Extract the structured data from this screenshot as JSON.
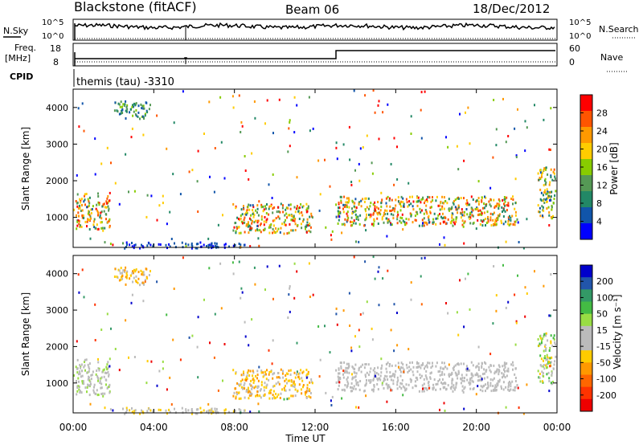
{
  "header": {
    "station": "Blackstone (fitACF)",
    "beam": "Beam 06",
    "date": "18/Dec/2012"
  },
  "top_panels": {
    "nsky_label": "N.Sky",
    "noise_ticks": [
      "10^5",
      "10^0"
    ],
    "nsearch_label": "N.Search",
    "freq_label": "Freq.",
    "freq_unit": "[MHz]",
    "freq_ticks": [
      "18",
      "8"
    ],
    "nave_label": "Nave",
    "nave_ticks": [
      "60",
      "0"
    ],
    "cpid_label": "CPID",
    "cpid_text": "themis (tau) -3310"
  },
  "xaxis": {
    "label": "Time UT",
    "ticks": [
      "00:00",
      "04:00",
      "08:00",
      "12:00",
      "16:00",
      "20:00",
      "00:00"
    ]
  },
  "power_colorbar": {
    "label": "Power [dB]",
    "ticks": [
      "28",
      "24",
      "20",
      "16",
      "12",
      "8",
      "4"
    ],
    "colors": [
      "#ff0000",
      "#ff5500",
      "#ff9900",
      "#ffcc00",
      "#88cc00",
      "#559955",
      "#228866",
      "#1155aa",
      "#0000ff"
    ]
  },
  "velocity_colorbar": {
    "label": "Velocity [m s⁻¹]",
    "ticks": [
      "200",
      "100",
      "50",
      "15",
      "-15",
      "-50",
      "-100",
      "-200"
    ],
    "colors": [
      "#0000cc",
      "#2255aa",
      "#339966",
      "#44bb44",
      "#99dd44",
      "#bbbbbb",
      "#bbbbbb",
      "#ffcc00",
      "#ff9900",
      "#ff6600",
      "#ff3300",
      "#ee0000"
    ]
  },
  "chart_data": [
    {
      "type": "heatmap",
      "title": "",
      "xlabel": "Time UT",
      "ylabel": "Slant Range [km]",
      "xlim_hours": [
        0,
        24
      ],
      "ylim_km": [
        180,
        4500
      ],
      "y_ticks": [
        1000,
        2000,
        3000,
        4000
      ],
      "colorbar_label": "Power [dB]",
      "scatter_regions": [
        {
          "t": [
            0.1,
            1.8
          ],
          "r": [
            700,
            1700
          ],
          "value_range_db": [
            8,
            28
          ]
        },
        {
          "t": [
            2.0,
            3.8
          ],
          "r": [
            3700,
            4200
          ],
          "value_range_db": [
            6,
            16
          ]
        },
        {
          "t": [
            7.9,
            11.8
          ],
          "r": [
            600,
            1400
          ],
          "value_range_db": [
            8,
            28
          ]
        },
        {
          "t": [
            13.0,
            22.0
          ],
          "r": [
            800,
            1600
          ],
          "value_range_db": [
            8,
            28
          ]
        },
        {
          "t": [
            23.0,
            23.9
          ],
          "r": [
            1000,
            2400
          ],
          "value_range_db": [
            8,
            24
          ]
        },
        {
          "t": [
            2.5,
            8.5
          ],
          "r": [
            180,
            350
          ],
          "value_range_db": [
            4,
            8
          ]
        }
      ]
    },
    {
      "type": "heatmap",
      "title": "",
      "xlabel": "Time UT",
      "ylabel": "Slant Range [km]",
      "xlim_hours": [
        0,
        24
      ],
      "ylim_km": [
        180,
        4500
      ],
      "y_ticks": [
        1000,
        2000,
        3000,
        4000
      ],
      "colorbar_label": "Velocity [m s⁻¹]",
      "scatter_regions": [
        {
          "t": [
            0.1,
            1.8
          ],
          "r": [
            700,
            1700
          ],
          "value_range_ms": [
            -15,
            50
          ]
        },
        {
          "t": [
            2.0,
            3.8
          ],
          "r": [
            3700,
            4200
          ],
          "value_range_ms": [
            -100,
            -15
          ]
        },
        {
          "t": [
            7.9,
            11.8
          ],
          "r": [
            600,
            1400
          ],
          "value_range_ms": [
            -100,
            -15
          ]
        },
        {
          "t": [
            13.0,
            22.0
          ],
          "r": [
            800,
            1600
          ],
          "value_range_ms": [
            -15,
            15
          ]
        },
        {
          "t": [
            23.0,
            23.9
          ],
          "r": [
            1000,
            2400
          ],
          "value_range_ms": [
            -50,
            100
          ]
        },
        {
          "t": [
            2.5,
            8.5
          ],
          "r": [
            180,
            350
          ],
          "value_range_ms": [
            -50,
            -15
          ]
        }
      ]
    }
  ]
}
